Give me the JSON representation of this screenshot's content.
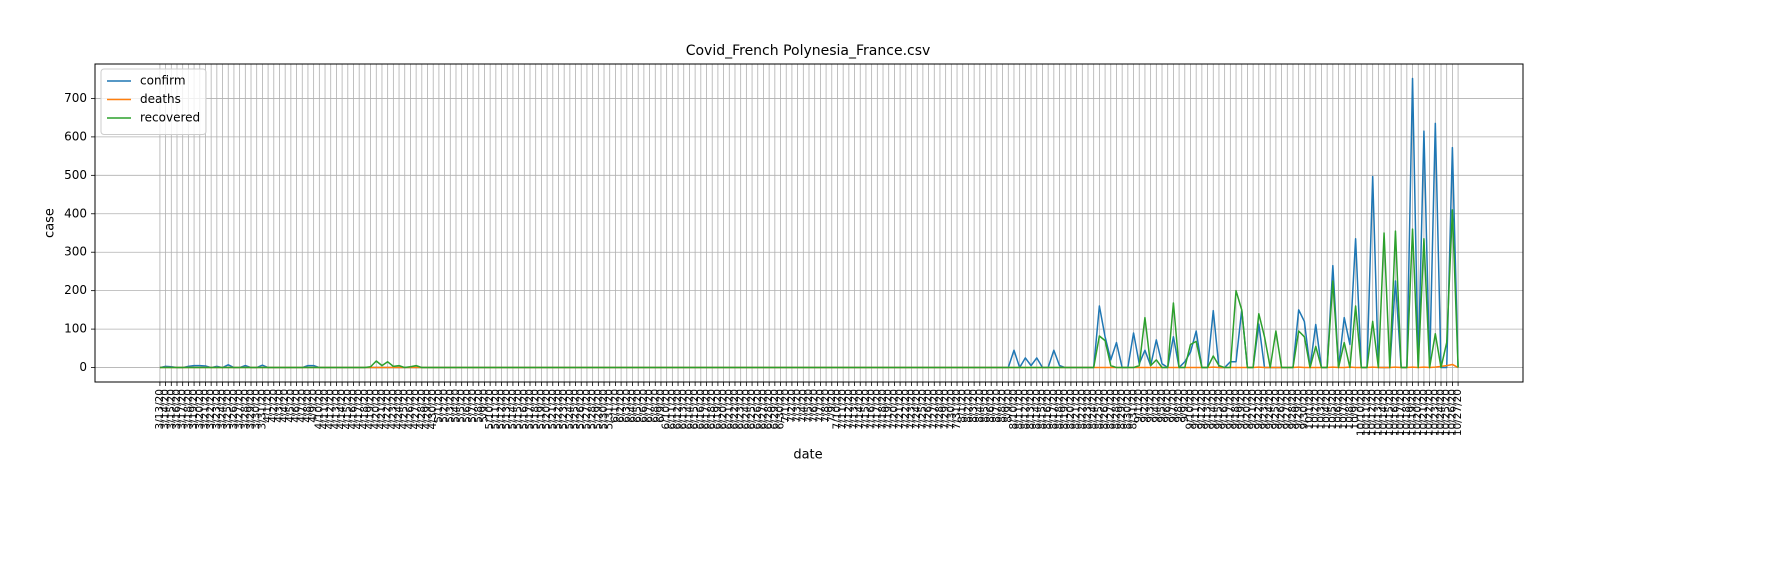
{
  "chart_data": {
    "type": "line",
    "title": "Covid_French Polynesia_France.csv",
    "x_label": "date",
    "y_label": "case",
    "categories": [
      "3/13/20",
      "3/14/20",
      "3/15/20",
      "3/16/20",
      "3/17/20",
      "3/18/20",
      "3/19/20",
      "3/20/20",
      "3/21/20",
      "3/22/20",
      "3/23/20",
      "3/24/20",
      "3/25/20",
      "3/26/20",
      "3/27/20",
      "3/28/20",
      "3/29/20",
      "3/30/20",
      "3/31/20",
      "4/1/20",
      "4/2/20",
      "4/3/20",
      "4/4/20",
      "4/5/20",
      "4/6/20",
      "4/7/20",
      "4/8/20",
      "4/9/20",
      "4/10/20",
      "4/11/20",
      "4/12/20",
      "4/13/20",
      "4/14/20",
      "4/15/20",
      "4/16/20",
      "4/17/20",
      "4/18/20",
      "4/19/20",
      "4/20/20",
      "4/21/20",
      "4/22/20",
      "4/23/20",
      "4/24/20",
      "4/25/20",
      "4/26/20",
      "4/27/20",
      "4/28/20",
      "4/29/20",
      "4/30/20",
      "5/1/20",
      "5/2/20",
      "5/3/20",
      "5/4/20",
      "5/5/20",
      "5/6/20",
      "5/7/20",
      "5/8/20",
      "5/9/20",
      "5/10/20",
      "5/11/20",
      "5/12/20",
      "5/13/20",
      "5/14/20",
      "5/15/20",
      "5/16/20",
      "5/17/20",
      "5/18/20",
      "5/19/20",
      "5/20/20",
      "5/21/20",
      "5/22/20",
      "5/23/20",
      "5/24/20",
      "5/25/20",
      "5/26/20",
      "5/27/20",
      "5/28/20",
      "5/29/20",
      "5/30/20",
      "5/31/20",
      "6/1/20",
      "6/2/20",
      "6/3/20",
      "6/4/20",
      "6/5/20",
      "6/6/20",
      "6/7/20",
      "6/8/20",
      "6/9/20",
      "6/10/20",
      "6/11/20",
      "6/12/20",
      "6/13/20",
      "6/14/20",
      "6/15/20",
      "6/16/20",
      "6/17/20",
      "6/18/20",
      "6/19/20",
      "6/20/20",
      "6/21/20",
      "6/22/20",
      "6/23/20",
      "6/24/20",
      "6/25/20",
      "6/26/20",
      "6/27/20",
      "6/28/20",
      "6/29/20",
      "6/30/20",
      "7/1/20",
      "7/2/20",
      "7/3/20",
      "7/4/20",
      "7/5/20",
      "7/6/20",
      "7/7/20",
      "7/8/20",
      "7/9/20",
      "7/10/20",
      "7/11/20",
      "7/12/20",
      "7/13/20",
      "7/14/20",
      "7/15/20",
      "7/16/20",
      "7/17/20",
      "7/18/20",
      "7/19/20",
      "7/20/20",
      "7/21/20",
      "7/22/20",
      "7/23/20",
      "7/24/20",
      "7/25/20",
      "7/26/20",
      "7/27/20",
      "7/28/20",
      "7/29/20",
      "7/30/20",
      "7/31/20",
      "8/1/20",
      "8/2/20",
      "8/3/20",
      "8/4/20",
      "8/5/20",
      "8/6/20",
      "8/7/20",
      "8/8/20",
      "8/9/20",
      "8/10/20",
      "8/11/20",
      "8/12/20",
      "8/13/20",
      "8/14/20",
      "8/15/20",
      "8/16/20",
      "8/17/20",
      "8/18/20",
      "8/19/20",
      "8/20/20",
      "8/21/20",
      "8/22/20",
      "8/23/20",
      "8/24/20",
      "8/25/20",
      "8/26/20",
      "8/27/20",
      "8/28/20",
      "8/29/20",
      "8/30/20",
      "8/31/20",
      "9/1/20",
      "9/2/20",
      "9/3/20",
      "9/4/20",
      "9/5/20",
      "9/6/20",
      "9/7/20",
      "9/8/20",
      "9/9/20",
      "9/10/20",
      "9/11/20",
      "9/12/20",
      "9/13/20",
      "9/14/20",
      "9/15/20",
      "9/16/20",
      "9/17/20",
      "9/18/20",
      "9/19/20",
      "9/20/20",
      "9/21/20",
      "9/22/20",
      "9/23/20",
      "9/24/20",
      "9/25/20",
      "9/26/20",
      "9/27/20",
      "9/28/20",
      "9/29/20",
      "9/30/20",
      "10/1/20",
      "10/2/20",
      "10/3/20",
      "10/4/20",
      "10/5/20",
      "10/6/20",
      "10/7/20",
      "10/8/20",
      "10/9/20",
      "10/10/20",
      "10/11/20",
      "10/12/20",
      "10/13/20",
      "10/14/20",
      "10/15/20",
      "10/16/20",
      "10/17/20",
      "10/18/20",
      "10/19/20",
      "10/20/20",
      "10/21/20",
      "10/22/20",
      "10/23/20",
      "10/24/20",
      "10/25/20",
      "10/26/20",
      "10/27/20"
    ],
    "series": [
      {
        "name": "confirm",
        "color": "#1f77b4",
        "values": [
          0,
          3,
          2,
          0,
          0,
          3,
          5,
          5,
          4,
          0,
          3,
          0,
          7,
          0,
          0,
          5,
          0,
          0,
          6,
          0,
          0,
          0,
          0,
          0,
          0,
          0,
          5,
          5,
          0,
          0,
          0,
          0,
          0,
          0,
          0,
          0,
          0,
          0,
          0,
          0,
          0,
          0,
          0,
          0,
          0,
          0,
          0,
          0,
          0,
          0,
          0,
          0,
          0,
          0,
          0,
          0,
          0,
          0,
          0,
          0,
          0,
          0,
          0,
          0,
          0,
          0,
          0,
          0,
          0,
          0,
          0,
          0,
          0,
          0,
          0,
          0,
          0,
          0,
          0,
          0,
          0,
          0,
          0,
          0,
          0,
          0,
          0,
          0,
          0,
          0,
          0,
          0,
          0,
          0,
          0,
          0,
          0,
          0,
          0,
          0,
          0,
          0,
          0,
          0,
          0,
          0,
          0,
          0,
          0,
          0,
          0,
          0,
          0,
          0,
          0,
          0,
          0,
          0,
          0,
          0,
          0,
          0,
          0,
          0,
          0,
          0,
          0,
          0,
          0,
          0,
          0,
          0,
          0,
          0,
          0,
          0,
          0,
          0,
          0,
          0,
          0,
          0,
          0,
          0,
          0,
          0,
          0,
          0,
          0,
          0,
          45,
          0,
          25,
          5,
          25,
          0,
          0,
          45,
          5,
          0,
          0,
          0,
          0,
          0,
          0,
          160,
          80,
          20,
          65,
          0,
          0,
          90,
          10,
          45,
          5,
          72,
          10,
          0,
          80,
          0,
          15,
          40,
          95,
          0,
          0,
          148,
          0,
          0,
          15,
          15,
          150,
          0,
          0,
          113,
          0,
          0,
          0,
          0,
          0,
          0,
          150,
          120,
          0,
          112,
          0,
          0,
          265,
          0,
          130,
          60,
          335,
          0,
          0,
          497,
          0,
          0,
          0,
          225,
          0,
          0,
          752,
          0,
          615,
          0,
          635,
          0,
          0,
          572,
          0
        ]
      },
      {
        "name": "deaths",
        "color": "#ff7f0e",
        "values": [
          0,
          0,
          0,
          0,
          0,
          0,
          0,
          0,
          0,
          0,
          0,
          0,
          0,
          0,
          0,
          0,
          0,
          0,
          0,
          0,
          0,
          0,
          0,
          0,
          0,
          0,
          0,
          0,
          0,
          0,
          0,
          0,
          0,
          0,
          0,
          0,
          0,
          0,
          0,
          0,
          0,
          0,
          0,
          0,
          0,
          0,
          0,
          0,
          0,
          0,
          0,
          0,
          0,
          0,
          0,
          0,
          0,
          0,
          0,
          0,
          0,
          0,
          0,
          0,
          0,
          0,
          0,
          0,
          0,
          0,
          0,
          0,
          0,
          0,
          0,
          0,
          0,
          0,
          0,
          0,
          0,
          0,
          0,
          0,
          0,
          0,
          0,
          0,
          0,
          0,
          0,
          0,
          0,
          0,
          0,
          0,
          0,
          0,
          0,
          0,
          0,
          0,
          0,
          0,
          0,
          0,
          0,
          0,
          0,
          0,
          0,
          0,
          0,
          0,
          0,
          0,
          0,
          0,
          0,
          0,
          0,
          0,
          0,
          0,
          0,
          0,
          0,
          0,
          0,
          0,
          0,
          0,
          0,
          0,
          0,
          0,
          0,
          0,
          0,
          0,
          0,
          0,
          0,
          0,
          0,
          0,
          0,
          0,
          0,
          0,
          0,
          0,
          0,
          0,
          0,
          0,
          0,
          0,
          0,
          0,
          0,
          0,
          0,
          0,
          0,
          0,
          0,
          0,
          0,
          0,
          0,
          0,
          0,
          0,
          0,
          0,
          0,
          0,
          0,
          0,
          0,
          0,
          0,
          0,
          0,
          1,
          0,
          0,
          0,
          0,
          0,
          0,
          0,
          1,
          0,
          0,
          0,
          0,
          0,
          0,
          1,
          0,
          0,
          0,
          0,
          0,
          1,
          0,
          0,
          1,
          0,
          0,
          0,
          1,
          0,
          0,
          0,
          1,
          0,
          0,
          1,
          0,
          1,
          0,
          1,
          3,
          5,
          8,
          0
        ]
      },
      {
        "name": "recovered",
        "color": "#2ca02c",
        "values": [
          0,
          0,
          0,
          0,
          0,
          0,
          0,
          0,
          0,
          0,
          0,
          0,
          0,
          0,
          0,
          0,
          0,
          0,
          0,
          0,
          0,
          0,
          0,
          0,
          0,
          0,
          0,
          0,
          0,
          0,
          0,
          0,
          0,
          0,
          0,
          0,
          0,
          2,
          17,
          5,
          15,
          3,
          5,
          0,
          2,
          5,
          0,
          0,
          0,
          0,
          0,
          0,
          0,
          0,
          0,
          0,
          0,
          0,
          0,
          0,
          0,
          0,
          0,
          0,
          0,
          0,
          0,
          0,
          0,
          0,
          0,
          0,
          0,
          0,
          0,
          0,
          0,
          0,
          0,
          0,
          0,
          0,
          0,
          0,
          0,
          0,
          0,
          0,
          0,
          0,
          0,
          0,
          0,
          0,
          0,
          0,
          0,
          0,
          0,
          0,
          0,
          0,
          0,
          0,
          0,
          0,
          0,
          0,
          0,
          0,
          0,
          0,
          0,
          0,
          0,
          0,
          0,
          0,
          0,
          0,
          0,
          0,
          0,
          0,
          0,
          0,
          0,
          0,
          0,
          0,
          0,
          0,
          0,
          0,
          0,
          0,
          0,
          0,
          0,
          0,
          0,
          0,
          0,
          0,
          0,
          0,
          0,
          0,
          0,
          0,
          0,
          0,
          0,
          0,
          0,
          0,
          0,
          0,
          0,
          0,
          0,
          0,
          0,
          0,
          0,
          82,
          70,
          5,
          0,
          0,
          0,
          0,
          5,
          130,
          5,
          20,
          0,
          0,
          168,
          0,
          0,
          60,
          68,
          0,
          0,
          30,
          5,
          0,
          0,
          200,
          150,
          0,
          0,
          140,
          80,
          0,
          95,
          0,
          0,
          0,
          95,
          80,
          0,
          55,
          0,
          0,
          225,
          0,
          65,
          0,
          160,
          0,
          0,
          120,
          0,
          350,
          0,
          355,
          0,
          0,
          360,
          0,
          335,
          0,
          88,
          0,
          65,
          410,
          0
        ]
      }
    ],
    "ylim": [
      -37.6,
      789.6
    ],
    "yticks": [
      0,
      100,
      200,
      300,
      400,
      500,
      600,
      700
    ],
    "grid": true,
    "legend": "upper left"
  }
}
